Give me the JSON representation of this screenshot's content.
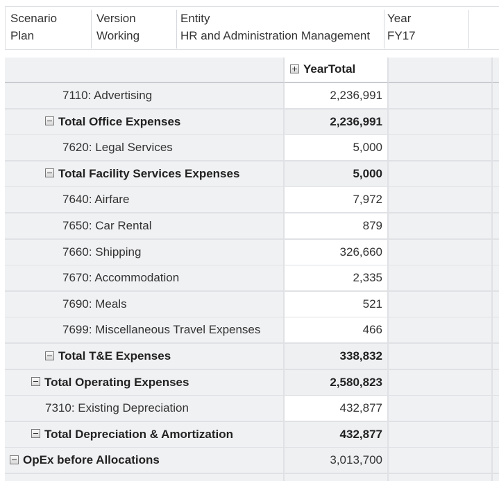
{
  "pov": [
    {
      "dimension": "Scenario",
      "member": "Plan"
    },
    {
      "dimension": "Version",
      "member": "Working"
    },
    {
      "dimension": "Entity",
      "member": "HR and Administration Management"
    },
    {
      "dimension": "Year",
      "member": "FY17"
    }
  ],
  "grid": {
    "column_header": "YearTotal",
    "rows": [
      {
        "label": "7110: Advertising",
        "value": "2,236,991",
        "level": 3,
        "total": false
      },
      {
        "label": "Total Office Expenses",
        "value": "2,236,991",
        "level": 2,
        "total": true
      },
      {
        "label": "7620: Legal Services",
        "value": "5,000",
        "level": 3,
        "total": false
      },
      {
        "label": "Total Facility Services Expenses",
        "value": "5,000",
        "level": 2,
        "total": true
      },
      {
        "label": "7640: Airfare",
        "value": "7,972",
        "level": 3,
        "total": false
      },
      {
        "label": "7650: Car Rental",
        "value": "879",
        "level": 3,
        "total": false
      },
      {
        "label": "7660: Shipping",
        "value": "326,660",
        "level": 3,
        "total": false
      },
      {
        "label": "7670: Accommodation",
        "value": "2,335",
        "level": 3,
        "total": false
      },
      {
        "label": "7690: Meals",
        "value": "521",
        "level": 3,
        "total": false
      },
      {
        "label": "7699: Miscellaneous Travel Expenses",
        "value": "466",
        "level": 3,
        "total": false
      },
      {
        "label": "Total T&E Expenses",
        "value": "338,832",
        "level": 2,
        "total": true
      },
      {
        "label": "Total Operating Expenses",
        "value": "2,580,823",
        "level": 1,
        "total": true
      },
      {
        "label": "7310: Existing Depreciation",
        "value": "432,877",
        "level": 2,
        "total": false
      },
      {
        "label": "Total Depreciation & Amortization",
        "value": "432,877",
        "level": 1,
        "total": true
      },
      {
        "label": "OpEx before Allocations",
        "value": "3,013,700",
        "level": 0,
        "total": true
      }
    ]
  }
}
